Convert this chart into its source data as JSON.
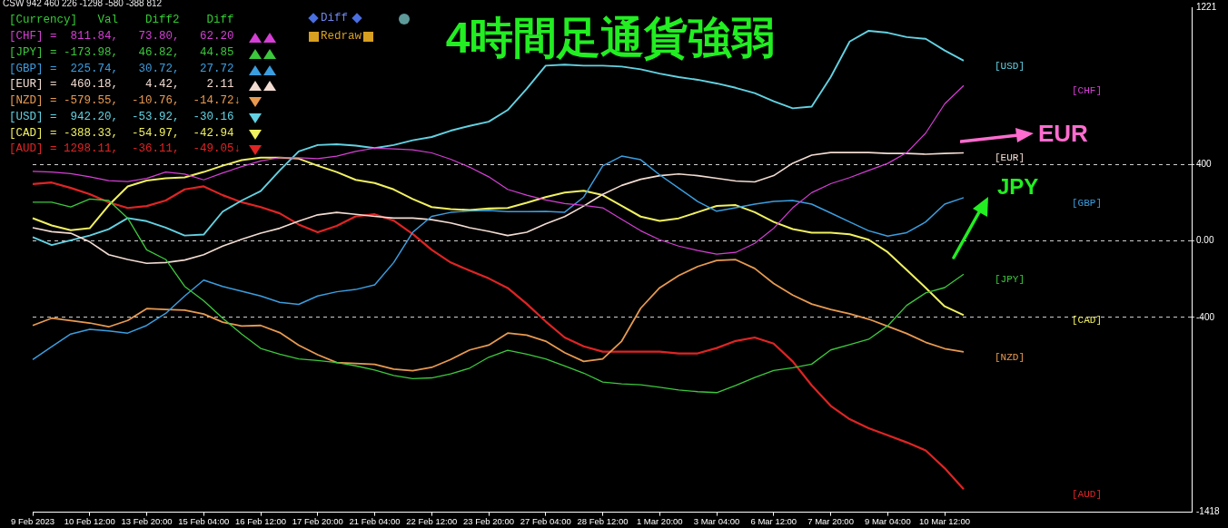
{
  "chart_data": {
    "type": "line",
    "title": "4時間足通貨強弱",
    "categories": [
      "9 Feb 2023",
      null,
      null,
      "10 Feb 12:00",
      null,
      null,
      "13 Feb 20:00",
      null,
      null,
      "15 Feb 04:00",
      null,
      null,
      "16 Feb 12:00",
      null,
      null,
      "17 Feb 20:00",
      null,
      null,
      "21 Feb 04:00",
      null,
      null,
      "22 Feb 12:00",
      null,
      null,
      "23 Feb 20:00",
      null,
      null,
      "27 Feb 04:00",
      null,
      null,
      "28 Feb 12:00",
      null,
      null,
      "1 Mar 20:00",
      null,
      null,
      "3 Mar 04:00",
      null,
      null,
      "6 Mar 12:00",
      null,
      null,
      "7 Mar 20:00",
      null,
      null,
      "9 Mar 04:00",
      null,
      null,
      "10 Mar 12:00",
      null,
      null,
      null,
      null,
      null,
      null,
      null,
      null,
      null,
      null,
      null,
      null,
      null
    ],
    "series": [
      {
        "name": "[CHF]",
        "color": "#d63fd6",
        "values": [
          363,
          360,
          352,
          335,
          315,
          310,
          327,
          360,
          349,
          319,
          355,
          388,
          418,
          435,
          435,
          430,
          443,
          468,
          485,
          481,
          476,
          460,
          427,
          385,
          335,
          269,
          239,
          214,
          195,
          186,
          173,
          113,
          53,
          6,
          -27,
          -50,
          -69,
          -60,
          -13,
          66,
          173,
          252,
          299,
          331,
          368,
          405,
          461,
          563,
          716,
          812,
          null,
          null,
          null,
          null,
          null,
          null,
          null,
          null,
          null,
          null,
          null,
          null
        ]
      },
      {
        "name": "[JPY]",
        "color": "#3cc83c",
        "values": [
          202,
          202,
          177,
          219,
          211,
          119,
          -47,
          -97,
          -238,
          -313,
          -404,
          -487,
          -562,
          -592,
          -617,
          -625,
          -636,
          -653,
          -675,
          -703,
          -720,
          -716,
          -695,
          -665,
          -608,
          -572,
          -592,
          -617,
          -654,
          -691,
          -738,
          -747,
          -752,
          -765,
          -779,
          -788,
          -793,
          -756,
          -714,
          -677,
          -663,
          -644,
          -570,
          -542,
          -514,
          -444,
          -337,
          -272,
          -244,
          -174,
          null,
          null,
          null,
          null,
          null,
          null,
          null,
          null,
          null,
          null,
          null,
          null
        ]
      },
      {
        "name": "[GBP]",
        "color": "#3b9ee0",
        "values": [
          -620,
          -553,
          -487,
          -462,
          -470,
          -482,
          -442,
          -379,
          -288,
          -205,
          -238,
          -263,
          -288,
          -321,
          -332,
          -288,
          -266,
          -254,
          -230,
          -113,
          45,
          128,
          149,
          156,
          159,
          153,
          153,
          154,
          150,
          229,
          392,
          443,
          424,
          345,
          276,
          206,
          155,
          173,
          192,
          206,
          211,
          192,
          146,
          99,
          53,
          25,
          43,
          99,
          192,
          226,
          null,
          null,
          null,
          null,
          null,
          null,
          null,
          null,
          null,
          null,
          null,
          null
        ]
      },
      {
        "name": "[EUR]",
        "color": "#f2dcd2",
        "values": [
          69,
          48,
          40,
          -5,
          -72,
          -97,
          -117,
          -113,
          -100,
          -72,
          -27,
          8,
          40,
          66,
          103,
          136,
          149,
          139,
          128,
          119,
          119,
          111,
          94,
          69,
          50,
          28,
          45,
          89,
          127,
          182,
          243,
          290,
          322,
          341,
          350,
          341,
          327,
          313,
          308,
          341,
          406,
          448,
          462,
          462,
          462,
          457,
          457,
          453,
          457,
          460,
          null,
          null,
          null,
          null,
          null,
          null,
          null,
          null,
          null,
          null,
          null,
          null
        ]
      },
      {
        "name": "[NZD]",
        "color": "#e89a50",
        "values": [
          -442,
          -404,
          -416,
          -429,
          -449,
          -416,
          -354,
          -359,
          -362,
          -382,
          -425,
          -445,
          -442,
          -479,
          -545,
          -595,
          -636,
          -641,
          -645,
          -670,
          -678,
          -661,
          -620,
          -570,
          -545,
          -482,
          -492,
          -524,
          -584,
          -630,
          -617,
          -524,
          -352,
          -245,
          -181,
          -134,
          -102,
          -98,
          -144,
          -223,
          -283,
          -330,
          -358,
          -381,
          -409,
          -446,
          -484,
          -530,
          -563,
          -580,
          null,
          null,
          null,
          null,
          null,
          null,
          null,
          null,
          null,
          null,
          null,
          null
        ]
      },
      {
        "name": "[USD]",
        "color": "#62d2e2",
        "values": [
          20,
          -22,
          3,
          28,
          61,
          119,
          103,
          69,
          28,
          33,
          153,
          211,
          260,
          368,
          468,
          501,
          505,
          498,
          485,
          501,
          526,
          543,
          576,
          601,
          623,
          684,
          795,
          916,
          921,
          916,
          916,
          911,
          897,
          874,
          856,
          842,
          823,
          800,
          772,
          730,
          693,
          702,
          856,
          1042,
          1098,
          1088,
          1065,
          1056,
          995,
          942,
          null,
          null,
          null,
          null,
          null,
          null,
          null,
          null,
          null,
          null,
          null,
          null
        ]
      },
      {
        "name": "[CAD]",
        "color": "#f0f060",
        "values": [
          119,
          81,
          56,
          66,
          186,
          285,
          315,
          327,
          332,
          360,
          393,
          422,
          435,
          435,
          430,
          393,
          360,
          319,
          302,
          269,
          219,
          177,
          166,
          161,
          169,
          172,
          199,
          229,
          253,
          262,
          239,
          183,
          127,
          104,
          118,
          150,
          183,
          187,
          150,
          99,
          62,
          43,
          43,
          34,
          6,
          -59,
          -152,
          -245,
          -342,
          -388,
          null,
          null,
          null,
          null,
          null,
          null,
          null,
          null,
          null,
          null,
          null,
          null
        ]
      },
      {
        "name": "[AUD]",
        "color": "#e02424",
        "values": [
          297,
          305,
          277,
          244,
          202,
          172,
          182,
          211,
          269,
          285,
          239,
          202,
          177,
          144,
          86,
          45,
          78,
          128,
          139,
          106,
          36,
          -47,
          -113,
          -155,
          -196,
          -246,
          -329,
          -421,
          -505,
          -551,
          -579,
          -579,
          -579,
          -579,
          -588,
          -588,
          -560,
          -523,
          -505,
          -537,
          -630,
          -755,
          -862,
          -932,
          -979,
          -1016,
          -1053,
          -1095,
          -1188,
          -1298,
          null,
          null,
          null,
          null,
          null,
          null,
          null,
          null,
          null,
          null,
          null,
          null
        ]
      }
    ],
    "ylim": [
      -1418,
      1221
    ],
    "yticks": [
      -1418,
      -400,
      {
        "value": 0,
        "label": "0.00"
      },
      400,
      1221
    ],
    "grid": "y",
    "legend": false,
    "marker": "none",
    "line_style": "solid",
    "annotations": [
      "CSW 942 460 226 -1298 -580 -388 812",
      "[Currency]   Val    Diff2    Diff",
      "[CHF] =  811.84,   73.80,   62.20",
      "[JPY] = -173.98,   46.82,   44.85",
      "[GBP] =  225.74,   30.72,   27.72",
      "[EUR] =  460.18,    4.42,    2.11",
      "[NZD] = -579.55,  -10.76,  -14.72↓",
      "[USD] =  942.20,  -53.92,  -30.16",
      "[CAD] = -388.33,  -54.97,  -42.94",
      "[AUD] = 1298.11,  -36.11,  -49.05↓",
      "Diff",
      "Redraw",
      "EUR",
      "JPY"
    ]
  }
}
